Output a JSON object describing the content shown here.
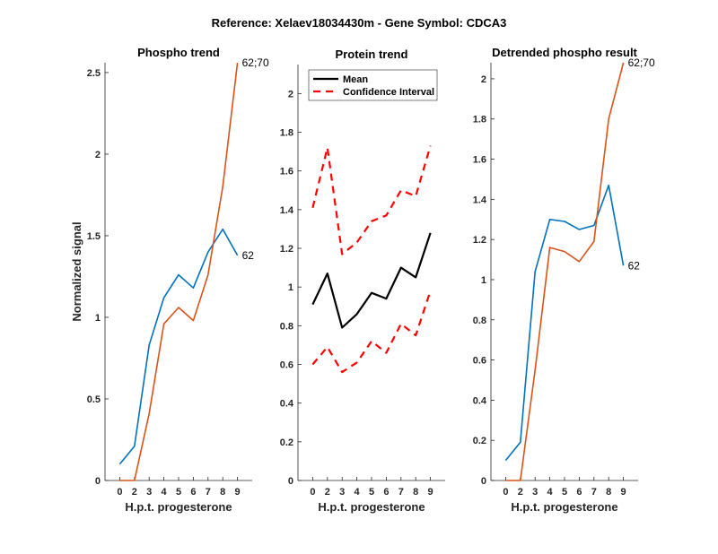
{
  "figure_title": "Reference:  Xelaev18034430m - Gene Symbol:  CDCA3",
  "colors": {
    "blue": "#0072BD",
    "orange": "#D95319",
    "mean": "#000000",
    "ci": "#FF0000"
  },
  "chart_data": [
    {
      "type": "line",
      "title": "Phospho trend",
      "xlabel": "H.p.t. progesterone",
      "ylabel": "Normalized signal",
      "categories": [
        "0",
        "2",
        "3",
        "4",
        "5",
        "6",
        "7",
        "8",
        "9"
      ],
      "ylim": [
        0,
        2.56
      ],
      "yticks": [
        0,
        0.5,
        1,
        1.5,
        2,
        2.5
      ],
      "ytick_labels": [
        "0",
        "0.5",
        "1",
        "1.5",
        "2",
        "2.5"
      ],
      "grid": false,
      "series": [
        {
          "end_label": "62",
          "color": "#0072BD",
          "style": "solid",
          "values": [
            0.1,
            0.21,
            0.83,
            1.12,
            1.26,
            1.18,
            1.4,
            1.54,
            1.38
          ]
        },
        {
          "end_label": "62;70",
          "color": "#D95319",
          "style": "solid",
          "values": [
            0,
            0,
            0.41,
            0.96,
            1.06,
            0.98,
            1.26,
            1.8,
            2.56
          ]
        }
      ]
    },
    {
      "type": "line",
      "title": "Protein trend",
      "xlabel": "H.p.t. progesterone",
      "ylabel": "",
      "categories": [
        "0",
        "2",
        "3",
        "4",
        "5",
        "6",
        "7",
        "8",
        "9"
      ],
      "ylim": [
        0,
        2.15
      ],
      "yticks": [
        0,
        0.2,
        0.4,
        0.6,
        0.8,
        1,
        1.2,
        1.4,
        1.6,
        1.8,
        2
      ],
      "ytick_labels": [
        "0",
        "0.2",
        "0.4",
        "0.6",
        "0.8",
        "1",
        "1.2",
        "1.4",
        "1.6",
        "1.8",
        "2"
      ],
      "grid": false,
      "legend": {
        "placement": "top-left",
        "entries": [
          "Mean",
          "Confidence Interval"
        ]
      },
      "series": [
        {
          "name": "Mean",
          "color": "#000000",
          "style": "solid",
          "values": [
            0.91,
            1.07,
            0.79,
            0.86,
            0.97,
            0.94,
            1.1,
            1.05,
            1.28
          ]
        },
        {
          "name": "Confidence Interval",
          "color": "#FF0000",
          "style": "dashed",
          "values": [
            1.41,
            1.72,
            1.17,
            1.23,
            1.34,
            1.37,
            1.5,
            1.47,
            1.73
          ]
        },
        {
          "name": "Confidence Interval",
          "color": "#FF0000",
          "style": "dashed",
          "values": [
            0.6,
            0.69,
            0.56,
            0.61,
            0.72,
            0.66,
            0.81,
            0.75,
            0.98
          ]
        }
      ]
    },
    {
      "type": "line",
      "title": "Detrended phospho result",
      "xlabel": "H.p.t. progesterone",
      "ylabel": "",
      "categories": [
        "0",
        "2",
        "3",
        "4",
        "5",
        "6",
        "7",
        "8",
        "9"
      ],
      "ylim": [
        0,
        2.08
      ],
      "yticks": [
        0,
        0.2,
        0.4,
        0.6,
        0.8,
        1,
        1.2,
        1.4,
        1.6,
        1.8,
        2
      ],
      "ytick_labels": [
        "0",
        "0.2",
        "0.4",
        "0.6",
        "0.8",
        "1",
        "1.2",
        "1.4",
        "1.6",
        "1.8",
        "2"
      ],
      "grid": false,
      "series": [
        {
          "end_label": "62",
          "color": "#0072BD",
          "style": "solid",
          "values": [
            0.1,
            0.19,
            1.04,
            1.3,
            1.29,
            1.25,
            1.27,
            1.47,
            1.07
          ]
        },
        {
          "end_label": "62;70",
          "color": "#D95319",
          "style": "solid",
          "values": [
            0,
            0,
            0.55,
            1.16,
            1.14,
            1.09,
            1.19,
            1.8,
            2.08
          ]
        }
      ]
    }
  ]
}
